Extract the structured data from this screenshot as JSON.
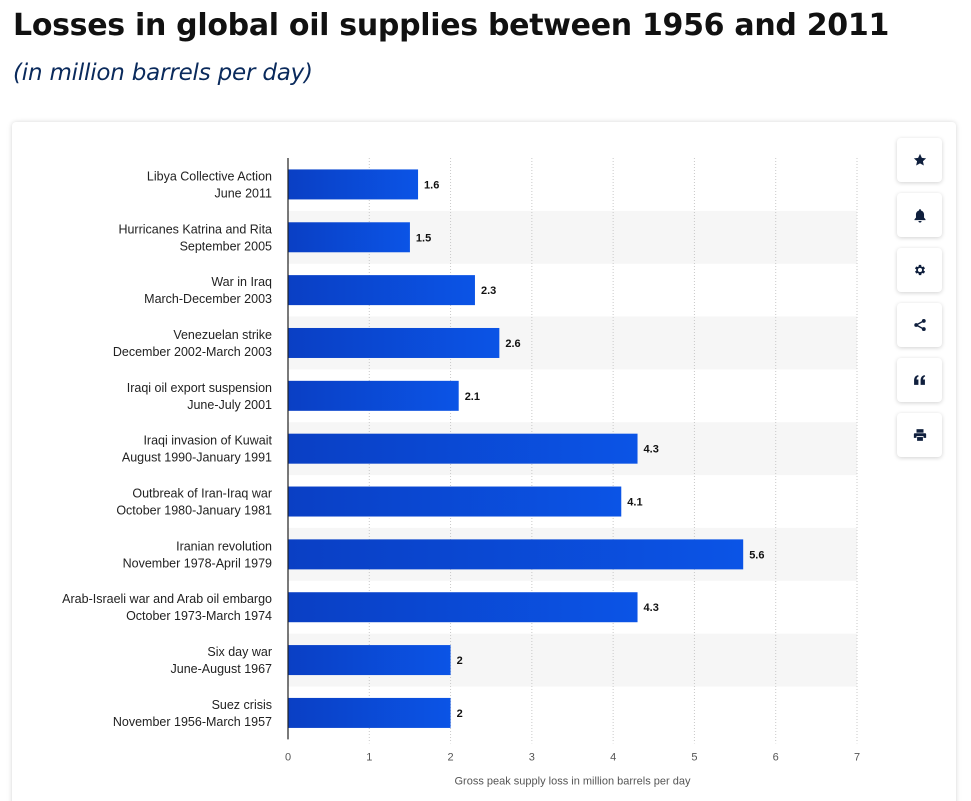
{
  "header": {
    "title": "Losses in global oil supplies between 1956 and 2011",
    "subtitle": "(in million barrels per day)"
  },
  "toolbar": {
    "buttons": [
      {
        "name": "favorite",
        "icon": "star-icon"
      },
      {
        "name": "notification",
        "icon": "bell-icon"
      },
      {
        "name": "settings",
        "icon": "gear-icon"
      },
      {
        "name": "share",
        "icon": "share-icon"
      },
      {
        "name": "cite",
        "icon": "quote-icon"
      },
      {
        "name": "print",
        "icon": "print-icon"
      }
    ]
  },
  "colors": {
    "bar_start": "#0a3fc4",
    "bar_end": "#0b54e6",
    "band": "#f6f6f6",
    "axis": "#222222",
    "grid": "#c9c9c9",
    "icon": "#0f1f3d"
  },
  "chart_data": {
    "type": "bar",
    "orientation": "horizontal",
    "categories": [
      {
        "line1": "Libya Collective Action",
        "line2": "June 2011"
      },
      {
        "line1": "Hurricanes Katrina and Rita",
        "line2": "September 2005"
      },
      {
        "line1": "War in Iraq",
        "line2": "March-December 2003"
      },
      {
        "line1": "Venezuelan strike",
        "line2": "December 2002-March 2003"
      },
      {
        "line1": "Iraqi oil export suspension",
        "line2": "June-July 2001"
      },
      {
        "line1": "Iraqi invasion of Kuwait",
        "line2": "August 1990-January 1991"
      },
      {
        "line1": "Outbreak of Iran-Iraq war",
        "line2": "October 1980-January 1981"
      },
      {
        "line1": "Iranian revolution",
        "line2": "November 1978-April 1979"
      },
      {
        "line1": "Arab-Israeli war and Arab oil embargo",
        "line2": "October 1973-March 1974"
      },
      {
        "line1": "Six day war",
        "line2": "June-August 1967"
      },
      {
        "line1": "Suez crisis",
        "line2": "November 1956-March 1957"
      }
    ],
    "values": [
      1.6,
      1.5,
      2.3,
      2.6,
      2.1,
      4.3,
      4.1,
      5.6,
      4.3,
      2,
      2
    ],
    "value_labels": [
      "1.6",
      "1.5",
      "2.3",
      "2.6",
      "2.1",
      "4.3",
      "4.1",
      "5.6",
      "4.3",
      "2",
      "2"
    ],
    "x_ticks": [
      "0",
      "1",
      "2",
      "3",
      "4",
      "5",
      "6",
      "7"
    ],
    "xlim": [
      0,
      7
    ],
    "xlabel": "Gross peak supply loss in million barrels per day",
    "ylabel": "",
    "grid": true,
    "legend": "none"
  }
}
